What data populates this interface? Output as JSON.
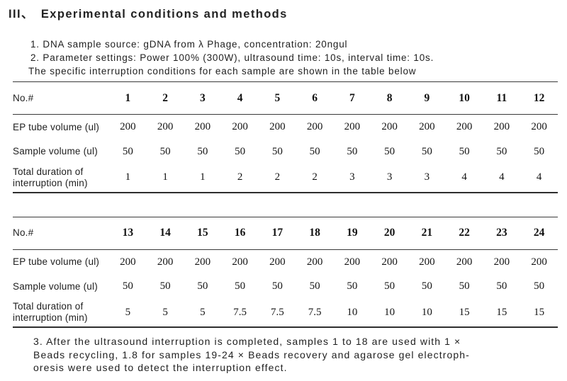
{
  "title": {
    "prefix": "III、",
    "text": "Experimental conditions and methods"
  },
  "intro": {
    "line1": "1. DNA sample source: gDNA from λ Phage, concentration: 20ngul",
    "line2": "2. Parameter settings: Power 100% (300W), ultrasound time: 10s, interval time: 10s.",
    "line3": "The specific interruption conditions for each sample are shown in the table below"
  },
  "tables": [
    {
      "header_label": "No.#",
      "columns": [
        "1",
        "2",
        "3",
        "4",
        "5",
        "6",
        "7",
        "8",
        "9",
        "10",
        "11",
        "12"
      ],
      "rows": [
        {
          "label": "EP tube volume (ul)",
          "values": [
            "200",
            "200",
            "200",
            "200",
            "200",
            "200",
            "200",
            "200",
            "200",
            "200",
            "200",
            "200"
          ]
        },
        {
          "label": "Sample volume (ul)",
          "values": [
            "50",
            "50",
            "50",
            "50",
            "50",
            "50",
            "50",
            "50",
            "50",
            "50",
            "50",
            "50"
          ]
        },
        {
          "label": "Total duration of interruption (min)",
          "values": [
            "1",
            "1",
            "1",
            "2",
            "2",
            "2",
            "3",
            "3",
            "3",
            "4",
            "4",
            "4"
          ]
        }
      ]
    },
    {
      "header_label": "No.#",
      "columns": [
        "13",
        "14",
        "15",
        "16",
        "17",
        "18",
        "19",
        "20",
        "21",
        "22",
        "23",
        "24"
      ],
      "rows": [
        {
          "label": "EP tube volume (ul)",
          "values": [
            "200",
            "200",
            "200",
            "200",
            "200",
            "200",
            "200",
            "200",
            "200",
            "200",
            "200",
            "200"
          ]
        },
        {
          "label": "Sample volume (ul)",
          "values": [
            "50",
            "50",
            "50",
            "50",
            "50",
            "50",
            "50",
            "50",
            "50",
            "50",
            "50",
            "50"
          ]
        },
        {
          "label": "Total duration of interruption (min)",
          "values": [
            "5",
            "5",
            "5",
            "7.5",
            "7.5",
            "7.5",
            "10",
            "10",
            "10",
            "15",
            "15",
            "15"
          ]
        }
      ]
    }
  ],
  "footer": {
    "line1": "3. After the ultrasound interruption is completed, samples 1 to 18 are used with 1 ×",
    "line2": "Beads recycling, 1.8 for samples 19-24 ×  Beads recovery and agarose gel electroph-",
    "line3": "oresis were used to detect the interruption effect."
  }
}
